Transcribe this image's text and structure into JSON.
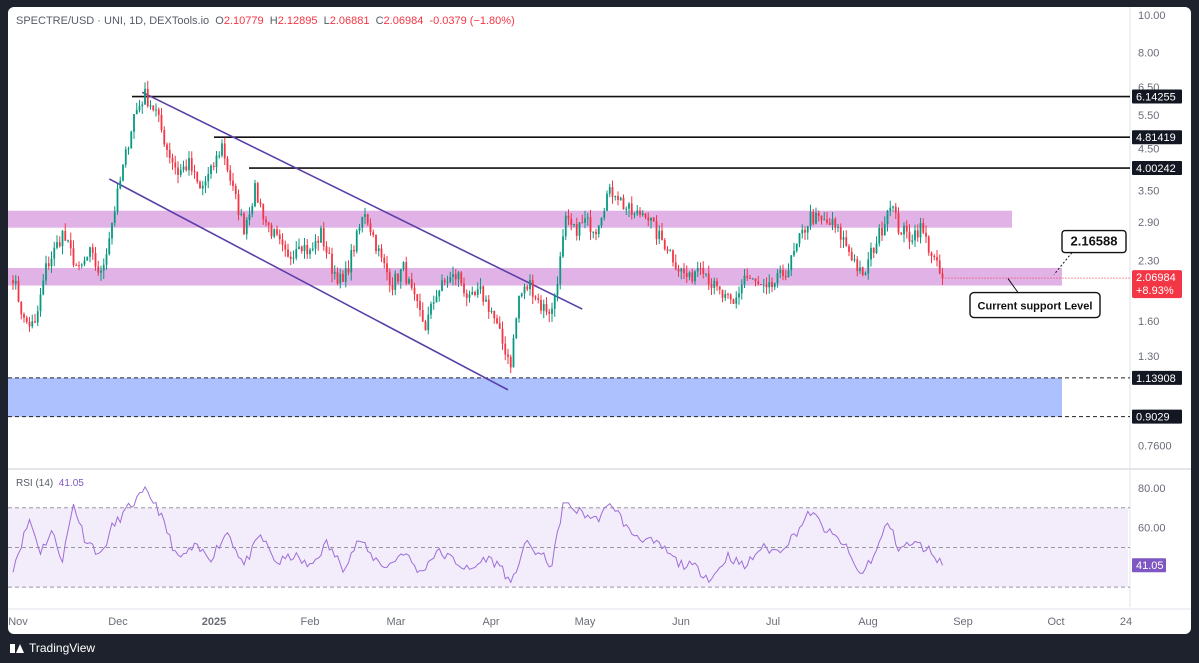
{
  "header": {
    "symbol": "SPECTRE/USD · UNI, 1D, DEXTools.io",
    "open_label": "O",
    "open": "2.10779",
    "high_label": "H",
    "high": "2.12895",
    "low_label": "L",
    "low": "2.06881",
    "close_label": "C",
    "close": "2.06984",
    "change": "-0.0379 (−1.80%)"
  },
  "footer": {
    "brand": "TradingView"
  },
  "colors": {
    "up": "#089981",
    "down": "#f23645",
    "channel": "#5b3fa8",
    "zone_purple": "#d89fe0",
    "zone_blue": "#9fb6ff",
    "rsi_line": "#9c6fd6",
    "rsi_band": "#f3ecfb"
  },
  "chart_data": [
    {
      "type": "candlestick",
      "title": "SPECTRE/USD · UNI, 1D, DEXTools.io",
      "yscale": "log",
      "ylim": [
        0.66,
        10.5
      ],
      "y_ticks": [
        "10.00",
        "8.00",
        "6.50",
        "5.50",
        "4.50",
        "3.50",
        "2.90",
        "2.30",
        "1.60",
        "1.30",
        "0.7600"
      ],
      "x_ticks": [
        "Nov",
        "Dec",
        "2025",
        "Feb",
        "Mar",
        "Apr",
        "May",
        "Jun",
        "Jul",
        "Aug",
        "Sep",
        "Oct",
        "24"
      ],
      "anchors": [
        {
          "day": 0,
          "price": 2.1
        },
        {
          "day": 4,
          "price": 1.6
        },
        {
          "day": 8,
          "price": 1.55
        },
        {
          "day": 12,
          "price": 2.2
        },
        {
          "day": 18,
          "price": 2.7
        },
        {
          "day": 24,
          "price": 2.15
        },
        {
          "day": 28,
          "price": 2.4
        },
        {
          "day": 32,
          "price": 2.1
        },
        {
          "day": 36,
          "price": 2.9
        },
        {
          "day": 40,
          "price": 4.0
        },
        {
          "day": 44,
          "price": 5.5
        },
        {
          "day": 48,
          "price": 6.2
        },
        {
          "day": 52,
          "price": 5.6
        },
        {
          "day": 56,
          "price": 4.5
        },
        {
          "day": 60,
          "price": 3.9
        },
        {
          "day": 64,
          "price": 4.1
        },
        {
          "day": 68,
          "price": 3.5
        },
        {
          "day": 72,
          "price": 3.9
        },
        {
          "day": 76,
          "price": 4.6
        },
        {
          "day": 80,
          "price": 3.5
        },
        {
          "day": 84,
          "price": 2.8
        },
        {
          "day": 88,
          "price": 3.5
        },
        {
          "day": 92,
          "price": 2.9
        },
        {
          "day": 96,
          "price": 2.6
        },
        {
          "day": 100,
          "price": 2.3
        },
        {
          "day": 104,
          "price": 2.6
        },
        {
          "day": 108,
          "price": 2.4
        },
        {
          "day": 112,
          "price": 2.7
        },
        {
          "day": 116,
          "price": 2.2
        },
        {
          "day": 120,
          "price": 2.0
        },
        {
          "day": 124,
          "price": 2.5
        },
        {
          "day": 128,
          "price": 3.1
        },
        {
          "day": 130,
          "price": 2.8
        },
        {
          "day": 134,
          "price": 2.3
        },
        {
          "day": 138,
          "price": 2.0
        },
        {
          "day": 142,
          "price": 2.2
        },
        {
          "day": 146,
          "price": 1.8
        },
        {
          "day": 150,
          "price": 1.55
        },
        {
          "day": 154,
          "price": 1.9
        },
        {
          "day": 158,
          "price": 2.05
        },
        {
          "day": 162,
          "price": 2.1
        },
        {
          "day": 166,
          "price": 1.8
        },
        {
          "day": 170,
          "price": 1.9
        },
        {
          "day": 174,
          "price": 1.7
        },
        {
          "day": 178,
          "price": 1.4
        },
        {
          "day": 181,
          "price": 1.25
        },
        {
          "day": 184,
          "price": 1.85
        },
        {
          "day": 188,
          "price": 2.0
        },
        {
          "day": 192,
          "price": 1.75
        },
        {
          "day": 196,
          "price": 1.7
        },
        {
          "day": 199,
          "price": 2.3
        },
        {
          "day": 201,
          "price": 2.9
        },
        {
          "day": 204,
          "price": 2.75
        },
        {
          "day": 208,
          "price": 2.9
        },
        {
          "day": 212,
          "price": 2.8
        },
        {
          "day": 216,
          "price": 3.4
        },
        {
          "day": 219,
          "price": 3.5
        },
        {
          "day": 222,
          "price": 3.2
        },
        {
          "day": 226,
          "price": 3.0
        },
        {
          "day": 230,
          "price": 3.1
        },
        {
          "day": 234,
          "price": 2.7
        },
        {
          "day": 238,
          "price": 2.5
        },
        {
          "day": 242,
          "price": 2.2
        },
        {
          "day": 246,
          "price": 2.05
        },
        {
          "day": 250,
          "price": 2.3
        },
        {
          "day": 254,
          "price": 2.0
        },
        {
          "day": 258,
          "price": 1.85
        },
        {
          "day": 262,
          "price": 1.75
        },
        {
          "day": 266,
          "price": 2.1
        },
        {
          "day": 270,
          "price": 2.0
        },
        {
          "day": 274,
          "price": 1.9
        },
        {
          "day": 278,
          "price": 2.05
        },
        {
          "day": 282,
          "price": 2.2
        },
        {
          "day": 286,
          "price": 2.6
        },
        {
          "day": 290,
          "price": 3.0
        },
        {
          "day": 294,
          "price": 2.9
        },
        {
          "day": 298,
          "price": 2.85
        },
        {
          "day": 302,
          "price": 2.6
        },
        {
          "day": 306,
          "price": 2.3
        },
        {
          "day": 309,
          "price": 2.05
        },
        {
          "day": 312,
          "price": 2.4
        },
        {
          "day": 316,
          "price": 2.8
        },
        {
          "day": 319,
          "price": 3.3
        },
        {
          "day": 322,
          "price": 2.8
        },
        {
          "day": 326,
          "price": 2.65
        },
        {
          "day": 330,
          "price": 2.8
        },
        {
          "day": 334,
          "price": 2.4
        },
        {
          "day": 337,
          "price": 2.12
        },
        {
          "day": 338,
          "price": 2.07
        }
      ],
      "horizontal_levels": [
        "6.14255",
        "4.81419",
        "4.00242"
      ],
      "support_label": "2.16588",
      "support_price": 2.16588,
      "current_price": "2.06984",
      "current_change": "+8.93%",
      "annotation": "Current support Level",
      "zones": [
        {
          "name": "resistance-zone",
          "from": 2.8,
          "to": 3.1
        },
        {
          "name": "support-zone",
          "from": 1.98,
          "to": 2.2
        },
        {
          "name": "demand-zone",
          "from": 0.9029,
          "to": 1.13908,
          "labels": [
            "1.13908",
            "0.9029"
          ]
        }
      ],
      "channel": {
        "upper": [
          {
            "day": 47,
            "price": 6.3
          },
          {
            "day": 207,
            "price": 1.72
          }
        ],
        "lower": [
          {
            "day": 35,
            "price": 3.75
          },
          {
            "day": 180,
            "price": 1.06
          }
        ]
      }
    },
    {
      "type": "line",
      "title": "RSI (14)",
      "value_label": "41.05",
      "ylim": [
        20,
        88
      ],
      "y_ticks": [
        "80.00",
        "60.00"
      ],
      "band": [
        30,
        70
      ],
      "midline": 50,
      "anchors": [
        {
          "day": 0,
          "value": 40
        },
        {
          "day": 6,
          "value": 64
        },
        {
          "day": 10,
          "value": 48
        },
        {
          "day": 14,
          "value": 58
        },
        {
          "day": 18,
          "value": 44
        },
        {
          "day": 22,
          "value": 72
        },
        {
          "day": 26,
          "value": 55
        },
        {
          "day": 32,
          "value": 46
        },
        {
          "day": 36,
          "value": 60
        },
        {
          "day": 42,
          "value": 70
        },
        {
          "day": 48,
          "value": 78
        },
        {
          "day": 52,
          "value": 72
        },
        {
          "day": 56,
          "value": 58
        },
        {
          "day": 60,
          "value": 44
        },
        {
          "day": 66,
          "value": 50
        },
        {
          "day": 72,
          "value": 45
        },
        {
          "day": 78,
          "value": 58
        },
        {
          "day": 84,
          "value": 41
        },
        {
          "day": 90,
          "value": 56
        },
        {
          "day": 96,
          "value": 42
        },
        {
          "day": 102,
          "value": 46
        },
        {
          "day": 108,
          "value": 40
        },
        {
          "day": 114,
          "value": 52
        },
        {
          "day": 120,
          "value": 40
        },
        {
          "day": 126,
          "value": 54
        },
        {
          "day": 130,
          "value": 46
        },
        {
          "day": 136,
          "value": 40
        },
        {
          "day": 142,
          "value": 48
        },
        {
          "day": 148,
          "value": 37
        },
        {
          "day": 154,
          "value": 48
        },
        {
          "day": 160,
          "value": 44
        },
        {
          "day": 166,
          "value": 38
        },
        {
          "day": 172,
          "value": 45
        },
        {
          "day": 178,
          "value": 40
        },
        {
          "day": 181,
          "value": 30
        },
        {
          "day": 186,
          "value": 52
        },
        {
          "day": 192,
          "value": 46
        },
        {
          "day": 196,
          "value": 41
        },
        {
          "day": 200,
          "value": 72
        },
        {
          "day": 206,
          "value": 68
        },
        {
          "day": 212,
          "value": 64
        },
        {
          "day": 218,
          "value": 72
        },
        {
          "day": 224,
          "value": 58
        },
        {
          "day": 230,
          "value": 54
        },
        {
          "day": 236,
          "value": 50
        },
        {
          "day": 242,
          "value": 42
        },
        {
          "day": 248,
          "value": 40
        },
        {
          "day": 254,
          "value": 34
        },
        {
          "day": 260,
          "value": 46
        },
        {
          "day": 266,
          "value": 40
        },
        {
          "day": 272,
          "value": 50
        },
        {
          "day": 278,
          "value": 48
        },
        {
          "day": 284,
          "value": 56
        },
        {
          "day": 290,
          "value": 68
        },
        {
          "day": 296,
          "value": 58
        },
        {
          "day": 302,
          "value": 52
        },
        {
          "day": 308,
          "value": 36
        },
        {
          "day": 314,
          "value": 48
        },
        {
          "day": 318,
          "value": 63
        },
        {
          "day": 322,
          "value": 50
        },
        {
          "day": 328,
          "value": 52
        },
        {
          "day": 334,
          "value": 48
        },
        {
          "day": 338,
          "value": 41
        }
      ]
    }
  ]
}
